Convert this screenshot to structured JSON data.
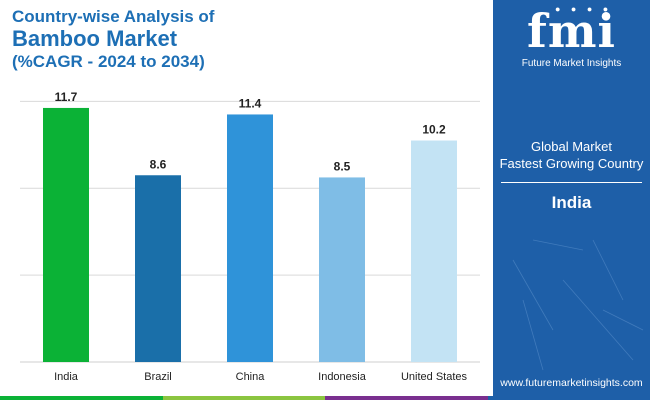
{
  "title": {
    "line1": "Country-wise Analysis of",
    "line2": "Bamboo Market",
    "line3": "(%CAGR - 2024 to 2034)"
  },
  "chart_data": {
    "type": "bar",
    "categories": [
      "India",
      "Brazil",
      "China",
      "Indonesia",
      "United States"
    ],
    "values": [
      11.7,
      8.6,
      11.4,
      8.5,
      10.2
    ],
    "bar_colors": [
      "#0bb236",
      "#1a6fa9",
      "#2f93d9",
      "#7fbde6",
      "#c3e3f4"
    ],
    "ylim": [
      0,
      14
    ],
    "grid": true,
    "xlabel": "",
    "ylabel": ""
  },
  "panel": {
    "brand": "fmi",
    "brand_name": "Future Market Insights",
    "label_line1": "Global Market",
    "label_line2": "Fastest Growing Country",
    "country": "India",
    "url": "www.futuremarketinsights.com"
  },
  "colors": {
    "panel_bg": "#1e5fa8",
    "title": "#1d6fb5",
    "bottom_bar": [
      "#0bb236",
      "#8bc540",
      "#7a2f8f",
      "#1e5fa8"
    ]
  }
}
